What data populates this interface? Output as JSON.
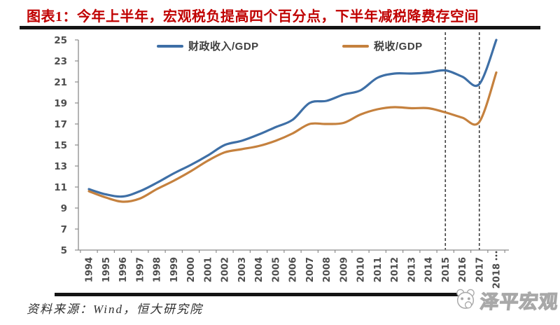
{
  "header": {
    "title": "图表1：今年上半年，宏观税负提高四个百分点，下半年减税降费存空间"
  },
  "footer": {
    "source": "资料来源：Wind，恒大研究院",
    "watermark": "泽平宏观"
  },
  "chart_data": {
    "type": "line",
    "title": "图表1：今年上半年，宏观税负提高四个百分点，下半年减税降费存空间",
    "x": [
      1994,
      1995,
      1996,
      1997,
      1998,
      1999,
      2000,
      2001,
      2002,
      2003,
      2004,
      2005,
      2006,
      2007,
      2008,
      2009,
      2010,
      2011,
      2012,
      2013,
      2014,
      2015,
      2016,
      2017,
      2018
    ],
    "series": [
      {
        "name": "财政收入/GDP",
        "color": "#3E6FA6",
        "values": [
          10.8,
          10.3,
          10.1,
          10.6,
          11.4,
          12.3,
          13.1,
          14.0,
          15.0,
          15.4,
          16.0,
          16.7,
          17.4,
          19.0,
          19.2,
          19.8,
          20.2,
          21.4,
          21.8,
          21.8,
          21.9,
          22.1,
          21.5,
          20.8,
          25.0
        ]
      },
      {
        "name": "税收/GDP",
        "color": "#C5813E",
        "values": [
          10.6,
          10.0,
          9.6,
          9.9,
          10.8,
          11.6,
          12.5,
          13.5,
          14.3,
          14.6,
          14.9,
          15.4,
          16.1,
          17.0,
          17.0,
          17.1,
          17.9,
          18.4,
          18.6,
          18.5,
          18.5,
          18.1,
          17.6,
          17.2,
          21.9
        ]
      }
    ],
    "ylim": [
      5,
      25
    ],
    "ytick_step": 2,
    "xlabel": "",
    "ylabel": "",
    "grid": false,
    "legend_position": "top-center",
    "dashed_vlines_x": [
      2015,
      2017
    ],
    "dotted_axis_marker_x": 2018,
    "axis_color": "#8c8c8c",
    "tick_label_color": "#4d4d4d",
    "dashed_line_color": "#3f3f3f"
  }
}
